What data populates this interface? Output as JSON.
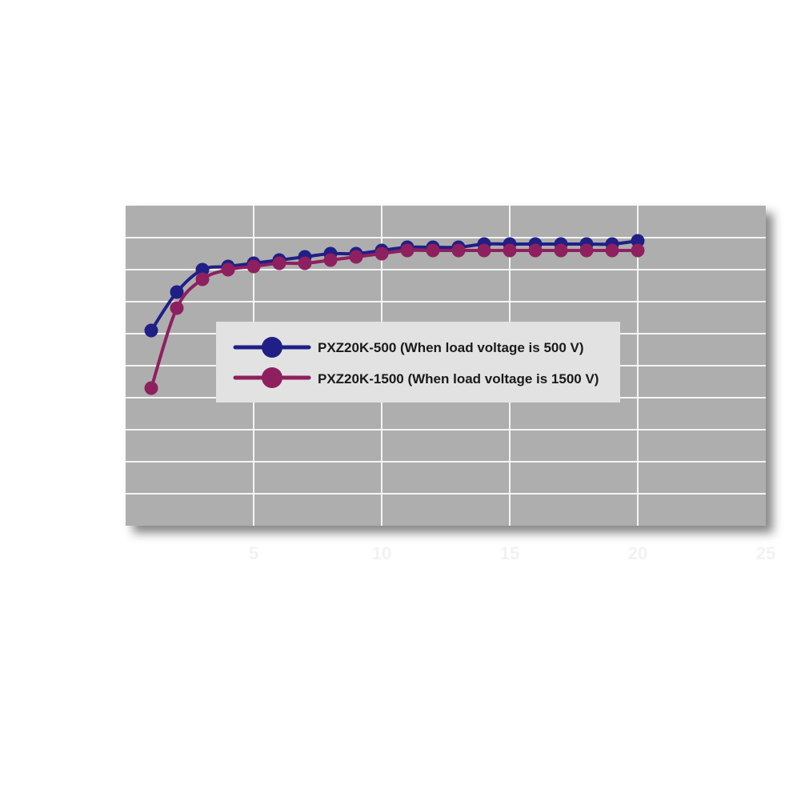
{
  "chart_data": {
    "type": "line",
    "x_ticks": [
      5,
      10,
      15,
      20,
      25
    ],
    "y_ticks": [],
    "xlim": [
      0,
      25
    ],
    "ylim": [
      0,
      100
    ],
    "grid": true,
    "legend_position": "center",
    "xlabel": "",
    "ylabel": "",
    "series": [
      {
        "name": "PXZ20K-500 (When load voltage is 500 V)",
        "color": "#1f1f85",
        "x": [
          1,
          2,
          3,
          4,
          5,
          6,
          7,
          8,
          9,
          10,
          11,
          12,
          13,
          14,
          15,
          16,
          17,
          18,
          19,
          20
        ],
        "y": [
          61,
          73,
          80,
          81,
          82,
          83,
          84,
          85,
          85,
          86,
          87,
          87,
          87,
          88,
          88,
          88,
          88,
          88,
          88,
          89
        ]
      },
      {
        "name": "PXZ20K-1500 (When load voltage is 1500 V)",
        "color": "#8e2060",
        "x": [
          1,
          2,
          3,
          4,
          5,
          6,
          7,
          8,
          9,
          10,
          11,
          12,
          13,
          14,
          15,
          16,
          17,
          18,
          19,
          20
        ],
        "y": [
          43,
          68,
          77,
          80,
          81,
          82,
          82,
          83,
          84,
          85,
          86,
          86,
          86,
          86,
          86,
          86,
          86,
          86,
          86,
          86
        ]
      }
    ]
  }
}
